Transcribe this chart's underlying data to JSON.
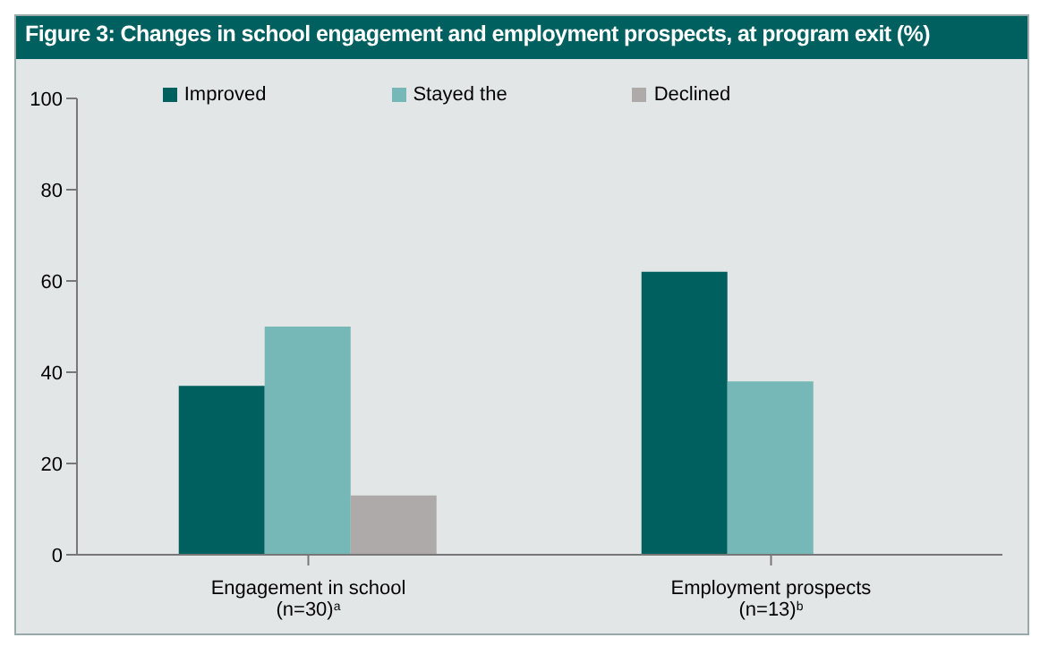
{
  "chart_data": {
    "type": "bar",
    "title": "Figure 3: Changes in school engagement and employment prospects, at program exit (%)",
    "categories": [
      "Engagement in school\n(n=30)$^{a}$",
      "Employment prospects\n(n=13)$^{b}$"
    ],
    "series": [
      {
        "name": "Improved",
        "color": "#005f5f",
        "values": [
          37,
          62
        ]
      },
      {
        "name": "Stayed the",
        "color": "#76b8b7",
        "values": [
          50,
          38
        ]
      },
      {
        "name": "Declined",
        "color": "#aeaaa9",
        "values": [
          13,
          0
        ]
      }
    ],
    "ylim": [
      0,
      100
    ],
    "yticks": [
      0,
      20,
      40,
      60,
      80,
      100
    ],
    "grid": false,
    "legend": "top"
  }
}
